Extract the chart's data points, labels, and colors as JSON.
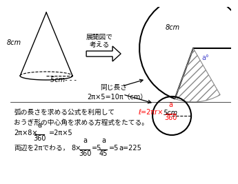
{
  "bg_color": "#ffffff",
  "cone_label_slant": "8cm",
  "cone_label_base": "5cm",
  "arrow_text_line1": "展開図で",
  "arrow_text_line2": "考える",
  "same_length_text": "同じ長さ",
  "arc_formula": "2π×5=10π（cm）",
  "sector_label_r": "8cm",
  "sector_label_a": "a°",
  "circle_label": "5cm",
  "text1": "弧の長さを求める公式を利用して",
  "formula_red_l": "ℓ=2πr×",
  "fraction_red_num": "a",
  "fraction_red_den": "360",
  "text2": "おうぎ形の中心角を求める方程式をたてる。",
  "equation_pre": "2π×8×",
  "eq_frac_num": "a",
  "eq_frac_den": "360",
  "eq_right": "=2π×5",
  "last_line_pre": "両辺を2πでわる，",
  "last_eq1_pre": "8×",
  "last_eq1_frac_num": "a",
  "last_eq1_frac_den": "360",
  "last_eq1_post": "=5",
  "last_eq2_frac_num": "a",
  "last_eq2_frac_den": "45",
  "last_eq2_post": "=5",
  "last_result": "a=225",
  "red_color": "#ff0000",
  "blue_color": "#4444cc"
}
